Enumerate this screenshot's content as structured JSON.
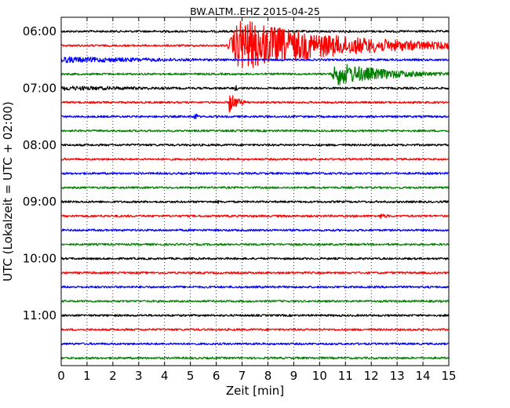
{
  "chart_data": {
    "type": "line",
    "subtype": "helicorder",
    "title": "BW.ALTM..EHZ 2015-04-25",
    "xlabel": "Zeit  [min]",
    "ylabel": "UTC (Lokalzeit = UTC + 02:00)",
    "xlim": [
      0,
      15
    ],
    "x_ticks": [
      "0",
      "1",
      "2",
      "3",
      "4",
      "5",
      "6",
      "7",
      "8",
      "9",
      "10",
      "11",
      "12",
      "13",
      "14",
      "15"
    ],
    "y_tick_labels": [
      "06:00",
      "07:00",
      "08:00",
      "09:00",
      "10:00",
      "11:00"
    ],
    "grid": "vertical dotted",
    "trace_interval_min": 15,
    "trace_colors": [
      "#000000",
      "#ff0000",
      "#0000ff",
      "#008000"
    ],
    "traces": [
      {
        "start": "06:00",
        "color": "#000000",
        "events": []
      },
      {
        "start": "06:15",
        "color": "#ff0000",
        "events": [
          {
            "t": 6.4,
            "duration": 8.6,
            "peak": 34,
            "type": "earthquake"
          }
        ]
      },
      {
        "start": "06:30",
        "color": "#0000ff",
        "events": [
          {
            "t": 0.0,
            "duration": 15,
            "peak": 4,
            "type": "coda"
          }
        ]
      },
      {
        "start": "06:45",
        "color": "#008000",
        "events": [
          {
            "t": 10.4,
            "duration": 4.6,
            "peak": 15,
            "type": "earthquake"
          }
        ]
      },
      {
        "start": "07:00",
        "color": "#000000",
        "events": [
          {
            "t": 0.0,
            "duration": 15,
            "peak": 3,
            "type": "coda"
          },
          {
            "t": 6.7,
            "duration": 0.3,
            "peak": 7,
            "type": "spike"
          }
        ]
      },
      {
        "start": "07:15",
        "color": "#ff0000",
        "events": [
          {
            "t": 6.5,
            "duration": 1.0,
            "peak": 14,
            "type": "aftershock"
          }
        ]
      },
      {
        "start": "07:30",
        "color": "#0000ff",
        "events": [
          {
            "t": 5.15,
            "duration": 0.3,
            "peak": 9,
            "type": "spike"
          }
        ]
      },
      {
        "start": "07:45",
        "color": "#008000",
        "events": []
      },
      {
        "start": "08:00",
        "color": "#000000",
        "events": []
      },
      {
        "start": "08:15",
        "color": "#ff0000",
        "events": []
      },
      {
        "start": "08:30",
        "color": "#0000ff",
        "events": []
      },
      {
        "start": "08:45",
        "color": "#008000",
        "events": []
      },
      {
        "start": "09:00",
        "color": "#000000",
        "events": [
          {
            "t": 6.05,
            "duration": 0.2,
            "peak": 4,
            "type": "spike"
          }
        ]
      },
      {
        "start": "09:15",
        "color": "#ff0000",
        "events": [
          {
            "t": 12.3,
            "duration": 1.2,
            "peak": 4,
            "type": "small"
          }
        ]
      },
      {
        "start": "09:30",
        "color": "#0000ff",
        "events": []
      },
      {
        "start": "09:45",
        "color": "#008000",
        "events": []
      },
      {
        "start": "10:00",
        "color": "#000000",
        "events": []
      },
      {
        "start": "10:15",
        "color": "#ff0000",
        "events": []
      },
      {
        "start": "10:30",
        "color": "#0000ff",
        "events": []
      },
      {
        "start": "10:45",
        "color": "#008000",
        "events": []
      },
      {
        "start": "11:00",
        "color": "#000000",
        "events": []
      },
      {
        "start": "11:15",
        "color": "#ff0000",
        "events": []
      },
      {
        "start": "11:30",
        "color": "#0000ff",
        "events": []
      },
      {
        "start": "11:45",
        "color": "#008000",
        "events": []
      }
    ]
  }
}
